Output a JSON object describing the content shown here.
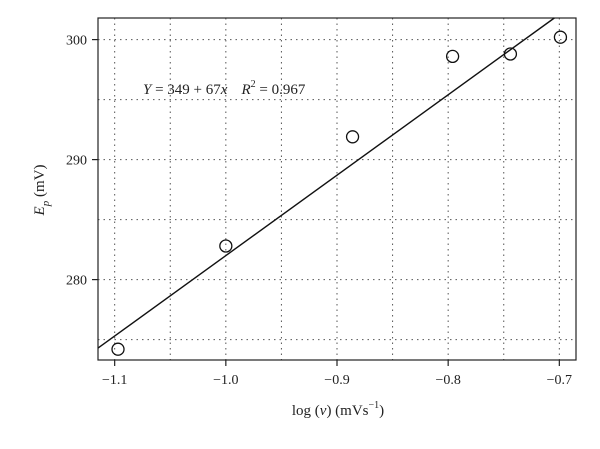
{
  "chart_data": {
    "type": "scatter",
    "title": "",
    "xlabel": {
      "main": "log (",
      "var": "ν",
      "mid": ") (mVs",
      "sup": "−1",
      "end": ")"
    },
    "ylabel": {
      "main": "E",
      "sub": "p",
      "unit": " (mV)"
    },
    "xlim": [
      -1.115,
      -0.685
    ],
    "ylim": [
      273.3,
      301.8
    ],
    "x_ticks": [
      -1.1,
      -1.0,
      -0.9,
      -0.8,
      -0.7
    ],
    "x_tick_labels": [
      "−1.1",
      "−1.0",
      "−0.9",
      "−0.8",
      "−0.7"
    ],
    "y_ticks": [
      280,
      290,
      300
    ],
    "y_tick_labels": [
      "280",
      "290",
      "300"
    ],
    "x_grid": [
      -1.1,
      -1.05,
      -1.0,
      -0.95,
      -0.9,
      -0.85,
      -0.8,
      -0.75,
      -0.7
    ],
    "y_grid": [
      275,
      280,
      285,
      290,
      295,
      300
    ],
    "grid": true,
    "series": [
      {
        "points": [
          {
            "x": -1.097,
            "y": 274.2
          },
          {
            "x": -1.0,
            "y": 282.8
          },
          {
            "x": -0.886,
            "y": 291.9
          },
          {
            "x": -0.796,
            "y": 298.6
          },
          {
            "x": -0.744,
            "y": 298.8
          },
          {
            "x": -0.699,
            "y": 300.2
          }
        ]
      }
    ],
    "fit_line": {
      "intercept": 349,
      "slope": 67
    },
    "annotation": {
      "y_sym": "Y",
      "equation": " = 349 + 67",
      "x_sym": "x",
      "r_sym": "R",
      "r_sup": "2",
      "r_value": " = 0.967"
    }
  }
}
